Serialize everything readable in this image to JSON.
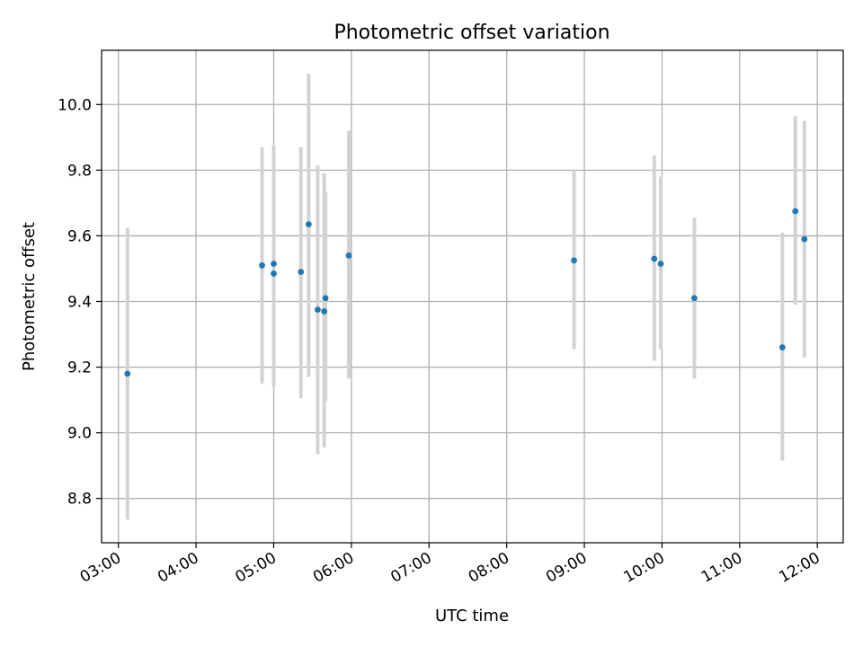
{
  "chart_data": {
    "type": "scatter",
    "title": "Photometric offset variation",
    "xlabel": "UTC time",
    "ylabel": "Photometric offset",
    "xlim": [
      "02:47",
      "12:20"
    ],
    "ylim": [
      8.665,
      10.165
    ],
    "x_ticks": [
      "03:00",
      "04:00",
      "05:00",
      "06:00",
      "07:00",
      "08:00",
      "09:00",
      "10:00",
      "11:00",
      "12:00"
    ],
    "y_ticks": [
      8.8,
      9.0,
      9.2,
      9.4,
      9.6,
      9.8,
      10.0
    ],
    "y_tick_labels": [
      "8.8",
      "9.0",
      "9.2",
      "9.4",
      "9.6",
      "9.8",
      "10.0"
    ],
    "grid": true,
    "colors": {
      "marker": "#1f77b4",
      "errorbar": "#d3d3d3",
      "grid": "#b0b0b0"
    },
    "points": [
      {
        "time": "03:07",
        "y": 9.18,
        "ylow": 8.735,
        "yhigh": 9.625
      },
      {
        "time": "04:51",
        "y": 9.51,
        "ylow": 9.15,
        "yhigh": 9.87
      },
      {
        "time": "05:00",
        "y": 9.515,
        "ylow": 9.2,
        "yhigh": 9.83
      },
      {
        "time": "05:00",
        "y": 9.485,
        "ylow": 9.14,
        "yhigh": 9.875
      },
      {
        "time": "05:21",
        "y": 9.49,
        "ylow": 9.105,
        "yhigh": 9.87
      },
      {
        "time": "05:27",
        "y": 9.635,
        "ylow": 9.17,
        "yhigh": 10.095
      },
      {
        "time": "05:34",
        "y": 9.375,
        "ylow": 8.935,
        "yhigh": 9.815
      },
      {
        "time": "05:39",
        "y": 9.37,
        "ylow": 8.955,
        "yhigh": 9.79
      },
      {
        "time": "05:40",
        "y": 9.41,
        "ylow": 9.095,
        "yhigh": 9.735
      },
      {
        "time": "05:58",
        "y": 9.54,
        "ylow": 9.165,
        "yhigh": 9.92
      },
      {
        "time": "08:52",
        "y": 9.525,
        "ylow": 9.255,
        "yhigh": 9.8
      },
      {
        "time": "09:54",
        "y": 9.53,
        "ylow": 9.22,
        "yhigh": 9.845
      },
      {
        "time": "09:59",
        "y": 9.515,
        "ylow": 9.255,
        "yhigh": 9.78
      },
      {
        "time": "10:25",
        "y": 9.41,
        "ylow": 9.165,
        "yhigh": 9.655
      },
      {
        "time": "11:33",
        "y": 9.26,
        "ylow": 8.915,
        "yhigh": 9.61
      },
      {
        "time": "11:43",
        "y": 9.675,
        "ylow": 9.39,
        "yhigh": 9.965
      },
      {
        "time": "11:50",
        "y": 9.59,
        "ylow": 9.23,
        "yhigh": 9.95
      }
    ]
  }
}
